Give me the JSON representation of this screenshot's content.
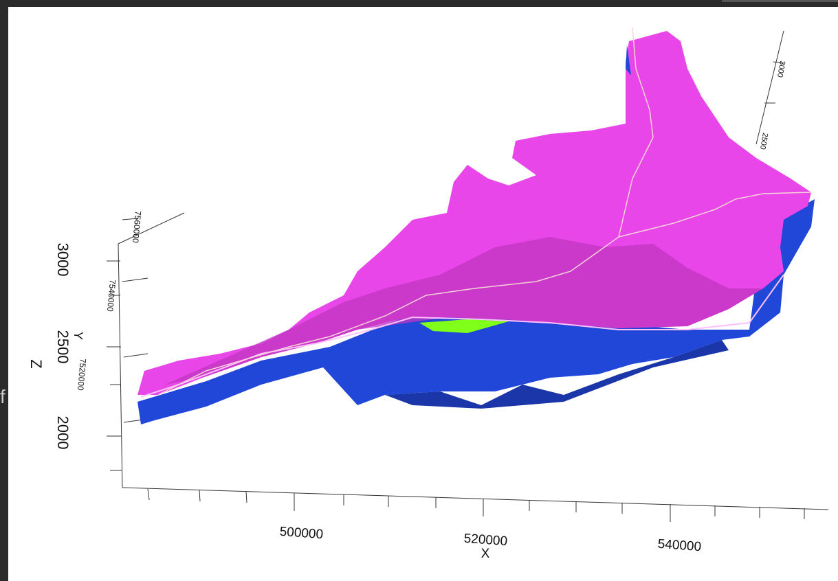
{
  "left_fragment": "f",
  "x_axis": {
    "label": "X",
    "ticks": [
      "500000",
      "520000",
      "540000"
    ]
  },
  "y_axis": {
    "label": "Y",
    "ticks": [
      "7520000",
      "7540000",
      "7560000"
    ]
  },
  "z_axis": {
    "label": "Z",
    "ticks": [
      "2000",
      "2500",
      "3000"
    ]
  },
  "z_axis_right": {
    "ticks": [
      "2500",
      "3000"
    ]
  }
}
